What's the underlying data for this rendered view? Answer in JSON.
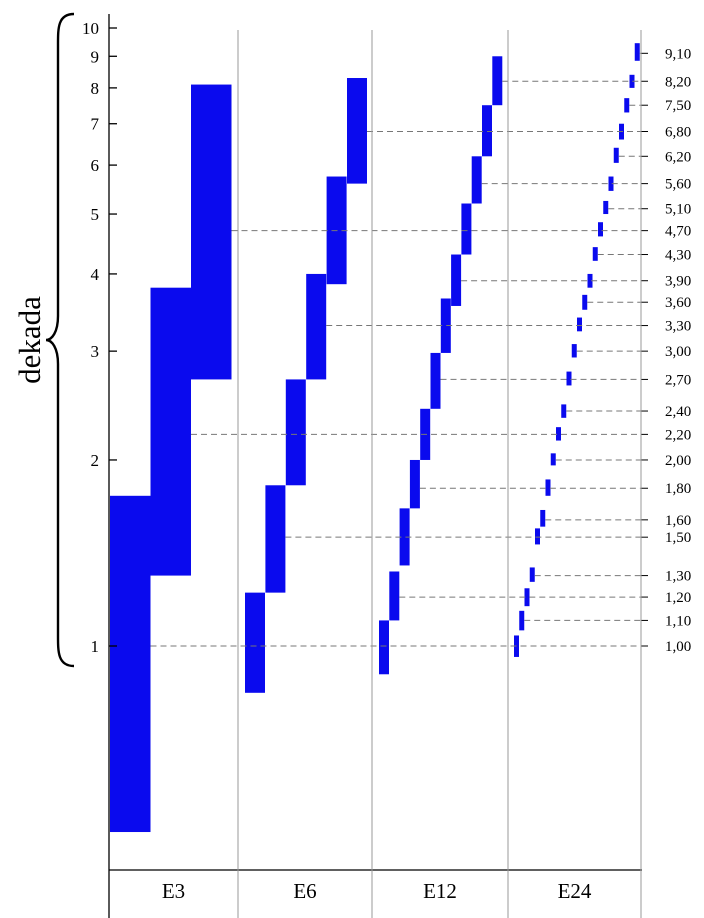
{
  "chart_data": {
    "type": "diagram",
    "side_label": "dekada",
    "y_scale": "log",
    "y_ticks": [
      1,
      2,
      3,
      4,
      5,
      6,
      7,
      8,
      9,
      10
    ],
    "y_tick_labels": [
      "1",
      "2",
      "3",
      "4",
      "5",
      "6",
      "7",
      "8",
      "9",
      "10"
    ],
    "categories": [
      "E3",
      "E6",
      "E12",
      "E24"
    ],
    "colors": {
      "bars": "#0a0aee",
      "guide_lines": "#777777",
      "axis": "#000000"
    },
    "series": [
      {
        "name": "E3",
        "bars": [
          [
            0.5,
            1.75
          ],
          [
            1.3,
            3.8
          ],
          [
            2.7,
            8.1
          ]
        ]
      },
      {
        "name": "E6",
        "bars": [
          [
            0.84,
            1.22
          ],
          [
            1.22,
            1.82
          ],
          [
            1.82,
            2.7
          ],
          [
            2.7,
            4.0
          ],
          [
            3.85,
            5.75
          ],
          [
            5.6,
            8.3
          ]
        ]
      },
      {
        "name": "E12",
        "bars": [
          [
            0.9,
            1.1
          ],
          [
            1.1,
            1.32
          ],
          [
            1.35,
            1.67
          ],
          [
            1.67,
            2.0
          ],
          [
            2.0,
            2.42
          ],
          [
            2.42,
            2.98
          ],
          [
            2.98,
            3.65
          ],
          [
            3.55,
            4.3
          ],
          [
            4.3,
            5.2
          ],
          [
            5.2,
            6.2
          ],
          [
            6.2,
            7.5
          ],
          [
            7.5,
            9.0
          ]
        ]
      },
      {
        "name": "E24",
        "bars": [
          [
            0.96,
            1.04
          ],
          [
            1.06,
            1.14
          ],
          [
            1.16,
            1.24
          ],
          [
            1.27,
            1.34
          ],
          [
            1.46,
            1.55
          ],
          [
            1.56,
            1.66
          ],
          [
            1.75,
            1.86
          ],
          [
            1.96,
            2.05
          ],
          [
            2.15,
            2.26
          ],
          [
            2.34,
            2.46
          ],
          [
            2.64,
            2.78
          ],
          [
            2.93,
            3.08
          ],
          [
            3.23,
            3.4
          ],
          [
            3.5,
            3.7
          ],
          [
            3.8,
            4.0
          ],
          [
            4.2,
            4.42
          ],
          [
            4.6,
            4.85
          ],
          [
            5.0,
            5.25
          ],
          [
            5.45,
            5.75
          ],
          [
            6.05,
            6.4
          ],
          [
            6.6,
            7.0
          ],
          [
            7.3,
            7.7
          ],
          [
            8.0,
            8.4
          ],
          [
            8.85,
            9.45
          ]
        ]
      }
    ],
    "reference_values": [
      {
        "label": "1,00",
        "value": 1.0,
        "from": "E3"
      },
      {
        "label": "1,10",
        "value": 1.1,
        "from": "E24"
      },
      {
        "label": "1,20",
        "value": 1.2,
        "from": "E12"
      },
      {
        "label": "1,30",
        "value": 1.3,
        "from": "E24"
      },
      {
        "label": "1,50",
        "value": 1.5,
        "from": "E6"
      },
      {
        "label": "1,60",
        "value": 1.6,
        "from": "E24"
      },
      {
        "label": "1,80",
        "value": 1.8,
        "from": "E12"
      },
      {
        "label": "2,00",
        "value": 2.0,
        "from": "E24"
      },
      {
        "label": "2,20",
        "value": 2.2,
        "from": "E3"
      },
      {
        "label": "2,40",
        "value": 2.4,
        "from": "E24"
      },
      {
        "label": "2,70",
        "value": 2.7,
        "from": "E12"
      },
      {
        "label": "3,00",
        "value": 3.0,
        "from": "E24"
      },
      {
        "label": "3,30",
        "value": 3.3,
        "from": "E6"
      },
      {
        "label": "3,60",
        "value": 3.6,
        "from": "E24"
      },
      {
        "label": "3,90",
        "value": 3.9,
        "from": "E12"
      },
      {
        "label": "4,30",
        "value": 4.3,
        "from": "E24"
      },
      {
        "label": "4,70",
        "value": 4.7,
        "from": "E3"
      },
      {
        "label": "5,10",
        "value": 5.1,
        "from": "E24"
      },
      {
        "label": "5,60",
        "value": 5.6,
        "from": "E12"
      },
      {
        "label": "6,20",
        "value": 6.2,
        "from": "E24"
      },
      {
        "label": "6,80",
        "value": 6.8,
        "from": "E6"
      },
      {
        "label": "7,50",
        "value": 7.5,
        "from": "E24"
      },
      {
        "label": "8,20",
        "value": 8.2,
        "from": "E12"
      },
      {
        "label": "9,10",
        "value": 9.1,
        "from": "E24"
      }
    ]
  }
}
